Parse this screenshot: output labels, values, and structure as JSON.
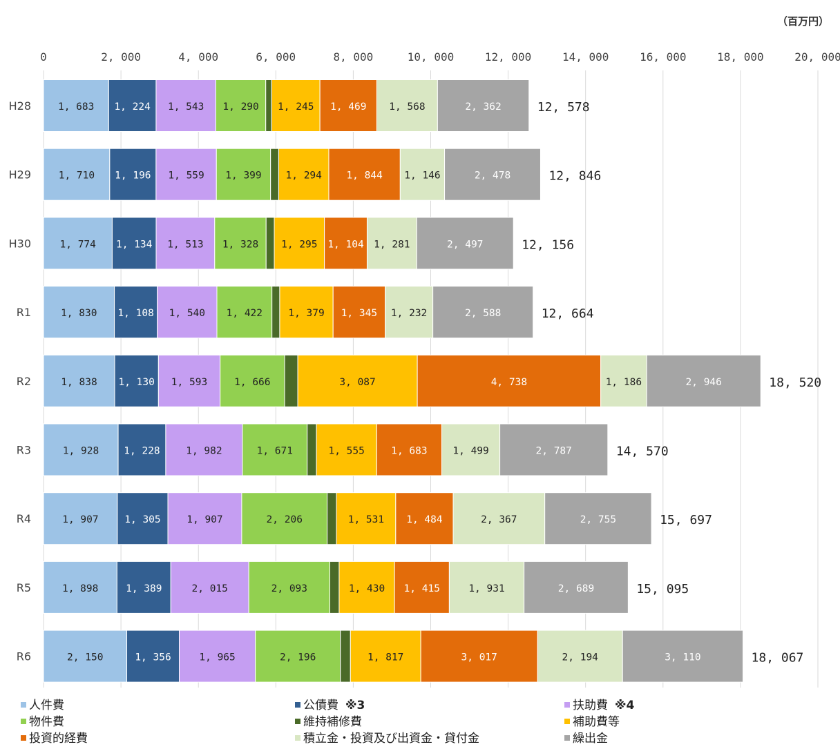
{
  "unit_label": "（百万円）",
  "colors": [
    "#9dc3e6",
    "#335f91",
    "#c59ef2",
    "#92d050",
    "#4a6a28",
    "#ffc000",
    "#e36c0a",
    "#d9e7c3",
    "#a5a5a5"
  ],
  "legend": [
    {
      "label": "人件費",
      "note": ""
    },
    {
      "label": "公債費",
      "note": "※3"
    },
    {
      "label": "扶助費",
      "note": "※4"
    },
    {
      "label": "物件費",
      "note": ""
    },
    {
      "label": "維持補修費",
      "note": ""
    },
    {
      "label": "補助費等",
      "note": ""
    },
    {
      "label": "投資的経費",
      "note": ""
    },
    {
      "label": "積立金・投資及び出資金・貸付金",
      "note": ""
    },
    {
      "label": "繰出金",
      "note": ""
    }
  ],
  "chart_data": {
    "type": "bar",
    "orientation": "horizontal",
    "stacked": true,
    "xlim": [
      0,
      20000
    ],
    "x_ticks": [
      "0",
      "2, 000",
      "4, 000",
      "6, 000",
      "8, 000",
      "10, 000",
      "12, 000",
      "14, 000",
      "16, 000",
      "18, 000",
      "20, 000"
    ],
    "categories": [
      "H28",
      "H29",
      "H30",
      "R1",
      "R2",
      "R3",
      "R4",
      "R5",
      "R6"
    ],
    "totals": [
      "12, 578",
      "12, 846",
      "12, 156",
      "12, 664",
      "18, 520",
      "14, 570",
      "15, 697",
      "15, 095",
      "18, 067"
    ],
    "grid": true,
    "legend_position": "bottom",
    "series": [
      {
        "name": "人件費",
        "values": [
          1683,
          1710,
          1774,
          1830,
          1838,
          1928,
          1907,
          1898,
          2150
        ],
        "labels": [
          "1, 683",
          "1, 710",
          "1, 774",
          "1, 830",
          "1, 838",
          "1, 928",
          "1, 907",
          "1, 898",
          "2, 150"
        ]
      },
      {
        "name": "公債費",
        "values": [
          1224,
          1196,
          1134,
          1108,
          1130,
          1228,
          1305,
          1389,
          1356
        ],
        "labels": [
          "1, 224",
          "1, 196",
          "1, 134",
          "1, 108",
          "1, 130",
          "1, 228",
          "1, 305",
          "1, 389",
          "1, 356"
        ]
      },
      {
        "name": "扶助費",
        "values": [
          1543,
          1559,
          1513,
          1540,
          1593,
          1982,
          1907,
          2015,
          1965
        ],
        "labels": [
          "1, 543",
          "1, 559",
          "1, 513",
          "1, 540",
          "1, 593",
          "1, 982",
          "1, 907",
          "2, 015",
          "1, 965"
        ]
      },
      {
        "name": "物件費",
        "values": [
          1290,
          1399,
          1328,
          1422,
          1666,
          1671,
          2206,
          2093,
          2196
        ],
        "labels": [
          "1, 290",
          "1, 399",
          "1, 328",
          "1, 422",
          "1, 666",
          "1, 671",
          "2, 206",
          "2, 093",
          "2, 196"
        ]
      },
      {
        "name": "維持補修費",
        "values": [
          154,
          210,
          210,
          200,
          340,
          240,
          240,
          240,
          260
        ],
        "labels": [
          "",
          "",
          "",
          "",
          "",
          "",
          "",
          "",
          ""
        ]
      },
      {
        "name": "補助費等",
        "values": [
          1245,
          1294,
          1295,
          1379,
          3087,
          1555,
          1531,
          1430,
          1817
        ],
        "labels": [
          "1, 245",
          "1, 294",
          "1, 295",
          "1, 379",
          "3, 087",
          "1, 555",
          "1, 531",
          "1, 430",
          "1, 817"
        ]
      },
      {
        "name": "投資的経費",
        "values": [
          1469,
          1844,
          1104,
          1345,
          4738,
          1683,
          1484,
          1415,
          3017
        ],
        "labels": [
          "1, 469",
          "1, 844",
          "1, 104",
          "1, 345",
          "4, 738",
          "1, 683",
          "1, 484",
          "1, 415",
          "3, 017"
        ]
      },
      {
        "name": "積立金・投資及び出資金・貸付金",
        "values": [
          1568,
          1146,
          1281,
          1232,
          1186,
          1499,
          2367,
          1931,
          2194
        ],
        "labels": [
          "1, 568",
          "1, 146",
          "1, 281",
          "1, 232",
          "1, 186",
          "1, 499",
          "2, 367",
          "1, 931",
          "2, 194"
        ]
      },
      {
        "name": "繰出金",
        "values": [
          2362,
          2478,
          2497,
          2588,
          2946,
          2787,
          2755,
          2689,
          3110
        ],
        "labels": [
          "2, 362",
          "2, 478",
          "2, 497",
          "2, 588",
          "2, 946",
          "2, 787",
          "2, 755",
          "2, 689",
          "3, 110"
        ]
      }
    ]
  }
}
